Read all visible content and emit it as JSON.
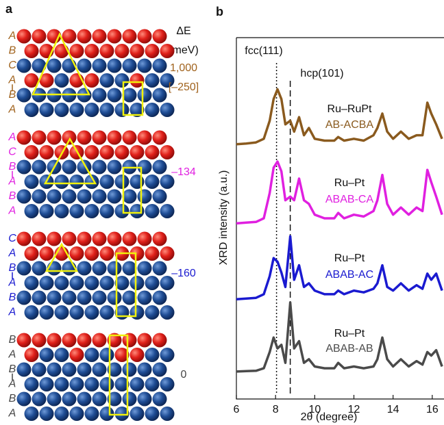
{
  "panel_a": {
    "label": "a",
    "header": [
      "ΔE",
      "(meV)"
    ],
    "structures": [
      {
        "stacking": [
          "A",
          "B",
          "C",
          "A",
          "B",
          "A"
        ],
        "color": "#a0621c",
        "energies": [
          "1,000",
          "[–250]"
        ]
      },
      {
        "stacking": [
          "A",
          "C",
          "B",
          "A",
          "B",
          "A"
        ],
        "color": "#e020e0",
        "energies": [
          "–134"
        ]
      },
      {
        "stacking": [
          "C",
          "A",
          "B",
          "A",
          "B",
          "A"
        ],
        "color": "#1a1ad0",
        "energies": [
          "–160"
        ]
      },
      {
        "stacking": [
          "B",
          "A",
          "B",
          "A",
          "B",
          "A"
        ],
        "color": "#444444",
        "energies": [
          "0"
        ]
      }
    ]
  },
  "chart_data": {
    "type": "line",
    "panel_label": "b",
    "xlabel": "2θ (degree)",
    "ylabel": "XRD intensity (a.u.)",
    "xlim": [
      6,
      16.6
    ],
    "xticks": [
      6,
      8,
      10,
      12,
      14,
      16
    ],
    "ylim": [
      0,
      100
    ],
    "reference_lines": [
      {
        "x": 8.05,
        "label": "fcc(111)",
        "style": "dotted"
      },
      {
        "x": 8.75,
        "label": "hcp(101)",
        "style": "dashed"
      }
    ],
    "x": [
      6,
      6.5,
      7,
      7.4,
      7.7,
      7.9,
      8.1,
      8.3,
      8.5,
      8.75,
      8.95,
      9.2,
      9.45,
      9.7,
      10,
      10.5,
      11,
      11.2,
      11.5,
      12,
      12.5,
      13,
      13.2,
      13.45,
      13.7,
      14,
      14.4,
      14.8,
      15.2,
      15.5,
      15.75,
      15.95,
      16.2,
      16.5
    ],
    "series": [
      {
        "name": "Ru–RuPt",
        "stacking": "AB-ACBA",
        "color": "#8a5a1e",
        "values": [
          70.5,
          70.7,
          71,
          72,
          77,
          83,
          85.7,
          83,
          76,
          77,
          74,
          78,
          73,
          75,
          72,
          71.5,
          71.5,
          72.5,
          71.5,
          72,
          71.5,
          73,
          75,
          79,
          74,
          72,
          74,
          72,
          73,
          73,
          82,
          79,
          76,
          72
        ]
      },
      {
        "name": "Ru–Pt",
        "stacking": "ABAB-CA",
        "color": "#e020e0",
        "values": [
          48.6,
          48.8,
          49,
          50,
          57,
          64,
          65.7,
          63,
          55,
          56,
          55,
          61,
          55,
          54,
          51,
          50,
          50,
          51.5,
          50,
          51,
          50.5,
          52,
          55,
          62,
          54,
          51,
          53,
          51,
          53,
          52,
          63.4,
          60,
          56,
          51
        ]
      },
      {
        "name": "Ru–Pt",
        "stacking": "ABAB-AC",
        "color": "#1a1ad0",
        "values": [
          27.6,
          27.8,
          28,
          29,
          34,
          39,
          38,
          35,
          31,
          45,
          33,
          37,
          31,
          32,
          30,
          29,
          29,
          30,
          29,
          30,
          29.5,
          30.5,
          32,
          37,
          31,
          30,
          32,
          30,
          31.5,
          30.5,
          34.7,
          33,
          34.7,
          30
        ]
      },
      {
        "name": "Ru–Pt",
        "stacking": "ABAB-AB",
        "color": "#4a4a4a",
        "values": [
          7.6,
          7.7,
          7.8,
          8.5,
          13,
          17,
          14,
          15,
          10,
          26.7,
          14,
          16,
          10,
          11,
          9,
          8.5,
          8.5,
          10,
          8.5,
          9,
          8.5,
          9,
          11,
          17,
          11,
          9,
          11,
          9,
          10.5,
          9.5,
          13,
          12,
          13.5,
          9
        ]
      }
    ]
  }
}
